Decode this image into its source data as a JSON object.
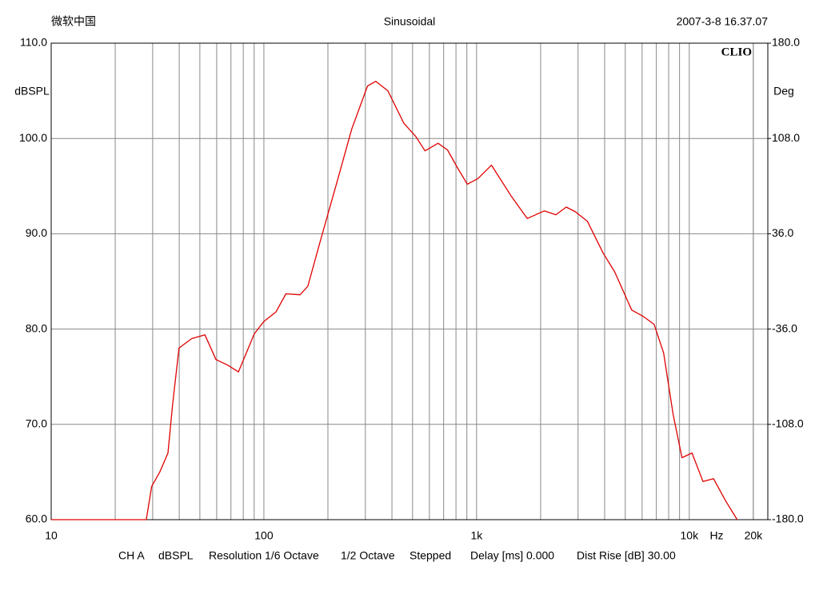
{
  "chart_data": {
    "type": "line",
    "header_left": "微软中国",
    "title": "Sinusoidal",
    "header_right": "2007-3-8 16.37.07",
    "brand": "CLIO",
    "ylabel": "dBSPL",
    "y2label": "Deg",
    "xunit": "Hz",
    "log_x": true,
    "grid": true,
    "xlim": [
      10,
      23400
    ],
    "xticks": [
      10,
      100,
      {
        "value": 1000,
        "label": "1k"
      },
      {
        "value": 10000,
        "label": "10k"
      },
      {
        "value": 20000,
        "label": "20k"
      }
    ],
    "x_minor_ticks": [
      20,
      30,
      40,
      50,
      60,
      70,
      80,
      90,
      200,
      300,
      400,
      500,
      600,
      700,
      800,
      900,
      2000,
      3000,
      4000,
      5000,
      6000,
      7000,
      8000,
      9000,
      20000
    ],
    "ylim": [
      60,
      110
    ],
    "yticks": [
      {
        "value": 60,
        "label": "60.0"
      },
      {
        "value": 70,
        "label": "70.0"
      },
      {
        "value": 80,
        "label": "80.0"
      },
      {
        "value": 90,
        "label": "90.0"
      },
      {
        "value": 100,
        "label": "100.0"
      },
      {
        "value": 110,
        "label": "110.0"
      }
    ],
    "y2lim": [
      -180,
      180
    ],
    "y2ticks": [
      {
        "value": -180,
        "label": "-180.0"
      },
      {
        "value": -108,
        "label": "-108.0"
      },
      {
        "value": -36,
        "label": "-36.0"
      },
      {
        "value": 36,
        "label": "36.0"
      },
      {
        "value": 108,
        "label": "108.0"
      },
      {
        "value": 180,
        "label": "180.0"
      }
    ],
    "series": [
      {
        "name": "CH A",
        "color": "#e00000",
        "x": [
          10,
          28,
          29.7,
          32.4,
          35.4,
          37.2,
          39.9,
          45.8,
          52.8,
          59.5,
          67.8,
          75.9,
          90.1,
          100,
          114,
          127,
          148,
          161,
          183,
          218,
          259,
          307,
          336,
          383,
          455,
          518,
          572,
          659,
          730,
          810,
          905,
          1015,
          1175,
          1450,
          1730,
          2080,
          2360,
          2640,
          2920,
          3320,
          3930,
          4460,
          5360,
          6100,
          6830,
          7570,
          8400,
          9240,
          10300,
          11600,
          13000,
          14800,
          16800
        ],
        "values": [
          60,
          60,
          63.5,
          65,
          67,
          72,
          78,
          79,
          79.4,
          76.8,
          76.2,
          75.5,
          79.5,
          80.8,
          81.8,
          83.7,
          83.6,
          84.5,
          89,
          95,
          101,
          105.5,
          106,
          105,
          101.6,
          100.2,
          98.7,
          99.5,
          98.8,
          97,
          95.2,
          95.8,
          97.2,
          94,
          91.6,
          92.4,
          92,
          92.8,
          92.3,
          91.3,
          88,
          86,
          82,
          81.3,
          80.5,
          77.5,
          71,
          66.5,
          67,
          64,
          64.3,
          62,
          60
        ]
      }
    ],
    "footer": [
      "CH A",
      "dBSPL",
      "Resolution 1/6 Octave",
      "1/2 Octave",
      "Stepped",
      "Delay [ms] 0.000",
      "Dist Rise [dB] 30.00"
    ]
  }
}
